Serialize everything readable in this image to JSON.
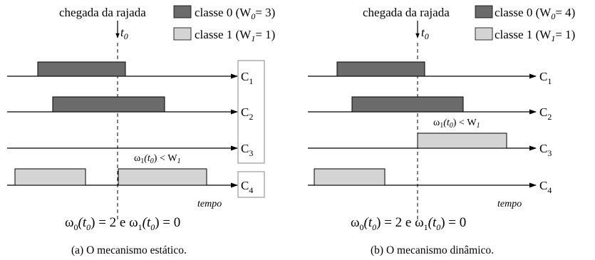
{
  "colors": {
    "class0": "#6b6b6b",
    "class1": "#d4d4d4",
    "line": "#000000",
    "box_border": "#999999"
  },
  "panels": [
    {
      "arrival_label": "chegada da rajada",
      "t0_label": "t",
      "t0_sub": "0",
      "legend": [
        {
          "text": "classe 0 (W",
          "sub": "0",
          "tail": "= 3)"
        },
        {
          "text": "classe 1 (W",
          "sub": "1",
          "tail": "= 1)"
        }
      ],
      "channels": [
        "C",
        "C",
        "C",
        "C"
      ],
      "channel_subs": [
        "1",
        "2",
        "3",
        "4"
      ],
      "annotation": {
        "pre": "ω",
        "sub1": "1",
        "mid": "(t",
        "sub2": "0",
        "post": ") < W",
        "sub3": "1"
      },
      "tempo": "tempo",
      "formula": {
        "a": "ω",
        "a_sub": "0",
        "b": "(t",
        "b_sub": "0",
        "c": ") = 2 e ",
        "d": "ω",
        "d_sub": "1",
        "e": "(t",
        "e_sub": "0",
        "f": ") = 0"
      },
      "caption": "(a)  O mecanismo estático."
    },
    {
      "arrival_label": "chegada da rajada",
      "t0_label": "t",
      "t0_sub": "0",
      "legend": [
        {
          "text": "classe 0 (W",
          "sub": "0",
          "tail": "= 4)"
        },
        {
          "text": "classe 1 (W",
          "sub": "1",
          "tail": "= 1)"
        }
      ],
      "channels": [
        "C",
        "C",
        "C",
        "C"
      ],
      "channel_subs": [
        "1",
        "2",
        "3",
        "4"
      ],
      "annotation": {
        "pre": "ω",
        "sub1": "1",
        "mid": "(t",
        "sub2": "0",
        "post": ") < W",
        "sub3": "1"
      },
      "tempo": "tempo",
      "formula": {
        "a": "ω",
        "a_sub": "0",
        "b": "(t",
        "b_sub": "0",
        "c": ") = 2 e ",
        "d": "ω",
        "d_sub": "1",
        "e": "(t",
        "e_sub": "0",
        "f": ") = 0"
      },
      "caption": "(b)  O mecanismo dinâmico."
    }
  ]
}
